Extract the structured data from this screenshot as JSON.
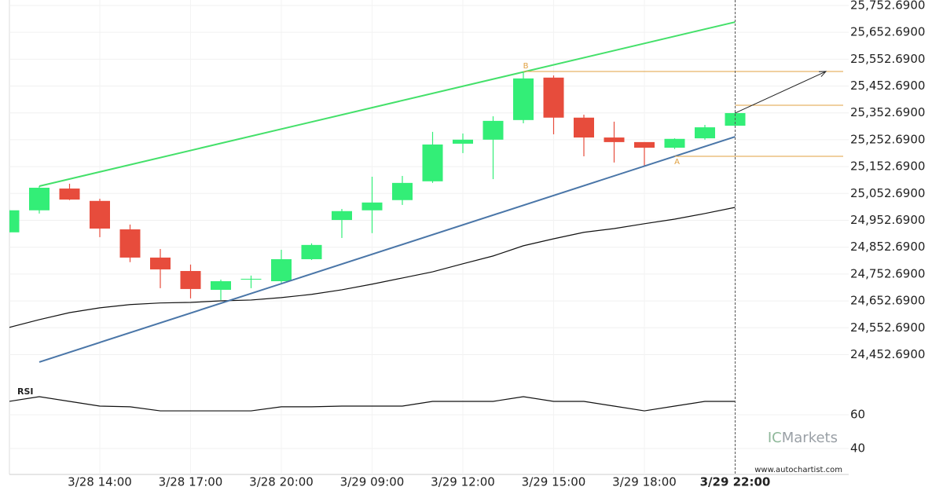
{
  "chart_data": {
    "type": "candlestick",
    "categories": [
      null,
      null,
      null,
      "3/28 14:00",
      null,
      null,
      "3/28 17:00",
      null,
      null,
      "3/28 20:00",
      null,
      null,
      "3/29 09:00",
      null,
      null,
      "3/29 12:00",
      null,
      null,
      "3/29 15:00",
      null,
      null,
      "3/29 18:00",
      null,
      null,
      "3/29 22:00"
    ],
    "open": [
      24908,
      24990,
      25071,
      25025,
      24919,
      24814,
      24764,
      24694,
      24732,
      24726,
      24808,
      24954,
      24990,
      25028,
      25098,
      25238,
      25253,
      25326,
      25484,
      25335,
      25261,
      25244,
      25223,
      25258,
      25305
    ],
    "high": [
      24995,
      25080,
      25089,
      25033,
      24937,
      24846,
      24788,
      24732,
      24747,
      24843,
      24867,
      24995,
      25115,
      25118,
      25282,
      25276,
      25340,
      25507,
      25492,
      25346,
      25320,
      25244,
      25258,
      25308,
      25358
    ],
    "low": [
      24905,
      24978,
      25028,
      24890,
      24797,
      24700,
      24662,
      24656,
      24700,
      24720,
      24805,
      24887,
      24905,
      25010,
      25092,
      25203,
      25106,
      25314,
      25273,
      25191,
      25168,
      25156,
      25218,
      25253,
      25302
    ],
    "close": [
      24990,
      25074,
      25030,
      24922,
      24814,
      24770,
      24697,
      24726,
      24735,
      24808,
      24861,
      24987,
      25019,
      25092,
      25235,
      25253,
      25323,
      25481,
      25335,
      25261,
      25244,
      25223,
      25256,
      25299,
      25352
    ],
    "up_color": "#33ee77",
    "down_color": "#e74c3c",
    "ylim": [
      24340,
      25773
    ],
    "yticks": [
      {
        "value": 25752.69,
        "label": "25,752.6900"
      },
      {
        "value": 25652.69,
        "label": "25,652.6900"
      },
      {
        "value": 25552.69,
        "label": "25,552.6900"
      },
      {
        "value": 25452.69,
        "label": "25,452.6900"
      },
      {
        "value": 25352.69,
        "label": "25,352.6900"
      },
      {
        "value": 25252.69,
        "label": "25,252.6900"
      },
      {
        "value": 25152.69,
        "label": "25,152.6900"
      },
      {
        "value": 25052.69,
        "label": "25,052.6900"
      },
      {
        "value": 24952.69,
        "label": "24,952.6900"
      },
      {
        "value": 24852.69,
        "label": "24,852.6900"
      },
      {
        "value": 24752.69,
        "label": "24,752.6900"
      },
      {
        "value": 24652.69,
        "label": "24,652.6900"
      },
      {
        "value": 24552.69,
        "label": "24,552.6900"
      },
      {
        "value": 24452.69,
        "label": "24,452.6900"
      }
    ],
    "grid": true,
    "moving_average": {
      "color": "#111111",
      "values": [
        24554,
        24583,
        24609,
        24627,
        24639,
        24645,
        24647,
        24653,
        24656,
        24665,
        24677,
        24694,
        24715,
        24738,
        24761,
        24791,
        24820,
        24858,
        24884,
        24908,
        24922,
        24940,
        24957,
        24978,
        25001
      ]
    },
    "trendlines": [
      {
        "color": "#44e06a",
        "x": [
          1,
          24
        ],
        "y": [
          25080,
          25691
        ]
      },
      {
        "color": "#4a76a8",
        "x": [
          1,
          24
        ],
        "y": [
          24425,
          25264
        ]
      }
    ],
    "levels": [
      {
        "value": 25507,
        "x_start": 17,
        "label": "B"
      },
      {
        "value": 25381,
        "x_start": 24
      },
      {
        "value": 25191,
        "x_start": 22,
        "label": "A"
      }
    ],
    "level_color": "#e0a040",
    "forecast_arrow": {
      "x": [
        24,
        27
      ],
      "y": [
        25352,
        25507
      ]
    },
    "rsi": {
      "label": "RSI",
      "color": "#111111",
      "ylim": [
        26.5,
        78.6
      ],
      "yticks": [
        40,
        60
      ],
      "values": [
        67.9,
        70.7,
        67.9,
        65.1,
        64.7,
        62.3,
        62.3,
        62.3,
        62.3,
        64.7,
        64.7,
        65.1,
        65.1,
        65.1,
        67.9,
        67.9,
        67.9,
        70.7,
        67.9,
        67.9,
        65.1,
        62.3,
        65.1,
        67.9,
        67.9
      ]
    },
    "watermark_prefix": "IC",
    "watermark_name": "Markets",
    "source": "www.autochartist.com"
  }
}
